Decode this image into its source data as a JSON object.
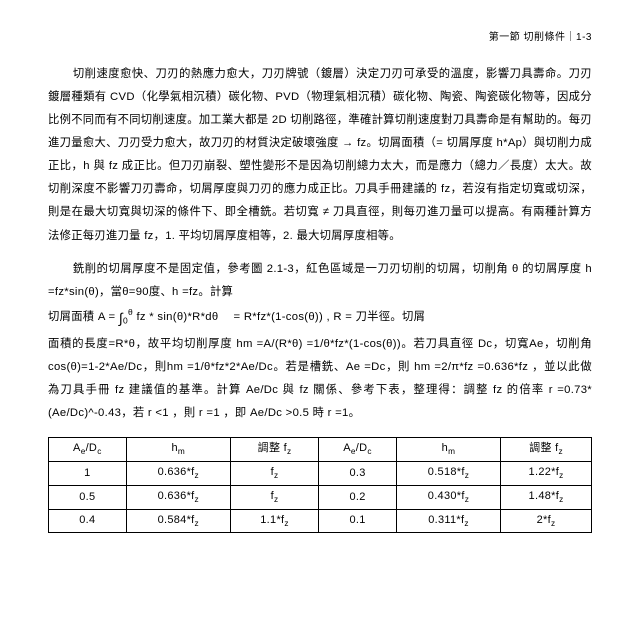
{
  "header": "第一節 切削條件｜1-3",
  "p1": "切削速度愈快、刀刃的熱應力愈大，刀刃牌號（鍍層）決定刀刃可承受的溫度，影響刀具壽命。刀刃鍍層種類有 CVD（化學氣相沉積）碳化物、PVD（物理氣相沉積）碳化物、陶瓷、陶瓷碳化物等，因成分比例不同而有不同切削速度。加工業大都是 2D 切削路徑，準確計算切削速度對刀具壽命是有幫助的。每刃進刀量愈大、刀刃受力愈大，故刀刃的材質決定破壞強度 → fz。切屑面積（= 切屑厚度 h*Ap）與切削力成正比，h 與 fz 成正比。但刀刃崩裂、塑性變形不是因為切削總力太大，而是應力（總力／長度）太大。故切削深度不影響刀刃壽命，切屑厚度與刀刃的應力成正比。刀具手冊建議的 fz，若沒有指定切寬或切深，則是在最大切寬與切深的條件下、即全槽銑。若切寬 ≠ 刀具直徑，則每刃進刀量可以提高。有兩種計算方法修正每刃進刀量 fz，1. 平均切屑厚度相等，2. 最大切屑厚度相等。",
  "p2a": "銑削的切屑厚度不是固定值，參考圖 2.1-3，紅色區域是一刀刃切削的切屑，切削角 θ 的切屑厚度 h =fz*sin(θ)，當θ=90度、h =fz。計算",
  "p2b": "切屑面積 A =",
  "p2c": "fz * sin(θ)*R*dθ　 = R*fz*(1-cos(θ)) , R = 刀半徑。切屑",
  "p2d": "面積的長度=R*θ，故平均切削厚度 hm =A/(R*θ) =1/θ*fz*(1-cos(θ))。若刀具直徑 Dc，切寬Ae，切削角 cos(θ)=1-2*Ae/Dc，則hm =1/θ*fz*2*Ae/Dc。若是槽銑、Ae =Dc，則 hm =2/π*fz =0.636*fz ，並以此做為刀具手冊 fz 建議值的基準。計算 Ae/Dc 與 fz 關係、參考下表，整理得：調整 fz 的倍率 r =0.73*(Ae/Dc)^-0.43，若 r <1 ，則 r =1 ，即 Ae/Dc >0.5 時 r =1。",
  "table": {
    "cols": [
      "Ae/Dc",
      "hm",
      "調整 fz",
      "Ae/Dc",
      "hm",
      "調整 fz"
    ],
    "rows": [
      [
        "1",
        "0.636*fz",
        "fz",
        "0.3",
        "0.518*fz",
        "1.22*fz"
      ],
      [
        "0.5",
        "0.636*fz",
        "fz",
        "0.2",
        "0.430*fz",
        "1.48*fz"
      ],
      [
        "0.4",
        "0.584*fz",
        "1.1*fz",
        "0.1",
        "0.311*fz",
        "2*fz"
      ]
    ]
  }
}
